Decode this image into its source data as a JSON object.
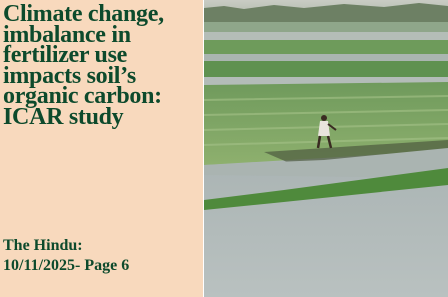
{
  "headline": [
    "Climate change,",
    "imbalance in",
    "fertilizer use",
    "impacts soil’s",
    "organic carbon:",
    "ICAR study"
  ],
  "source": {
    "publication": "The Hindu:",
    "date_page": "10/11/2025- Page 6"
  }
}
